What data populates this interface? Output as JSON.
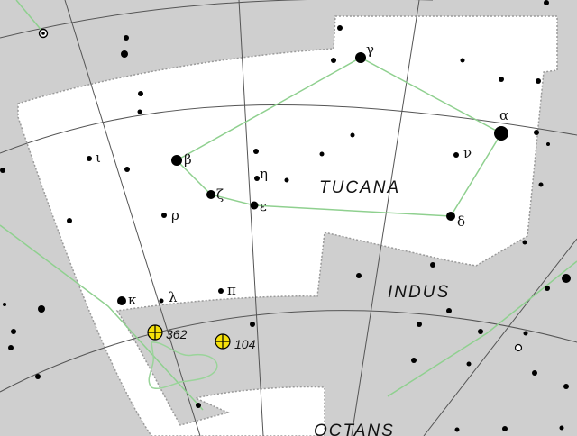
{
  "map": {
    "constellation_main": "TUCANA",
    "constellation_neighbors": [
      "INDUS",
      "OCTANS"
    ],
    "colors": {
      "outside_region": "#cfcfcf",
      "region": "#ffffff",
      "grid_line": "#555555",
      "stick_figure": "#8fd08f",
      "star": "#000000",
      "cluster_marker": "#f6e10a"
    }
  },
  "stars": {
    "alpha": "α",
    "beta": "β",
    "gamma": "γ",
    "delta": "δ",
    "epsilon": "ε",
    "zeta": "ζ",
    "eta": "η",
    "iota": "ι",
    "kappa": "κ",
    "lambda": "λ",
    "nu": "ν",
    "pi": "π",
    "rho": "ρ"
  },
  "clusters": {
    "ngc362": "362",
    "ngc104": "104"
  },
  "icons": {
    "cluster": "globular-cluster-icon",
    "variable": "variable-star-icon"
  }
}
